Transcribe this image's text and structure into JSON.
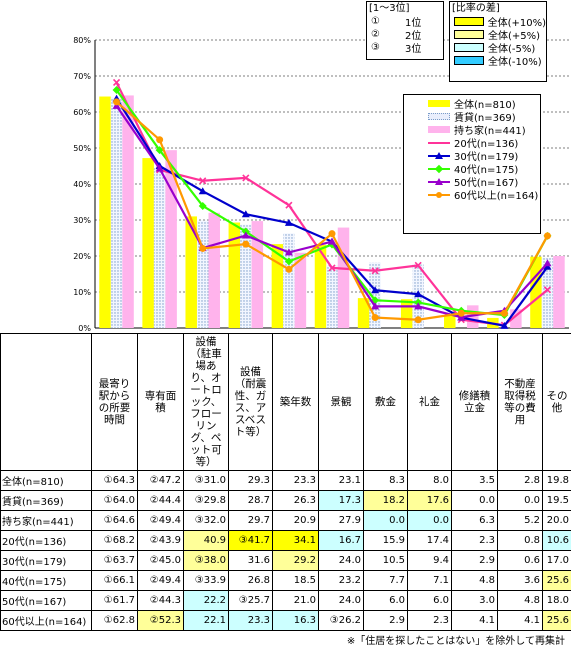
{
  "chart_data": {
    "type": "bar",
    "ylim": [
      0,
      80
    ],
    "yticks": [
      "0%",
      "10%",
      "20%",
      "30%",
      "40%",
      "50%",
      "60%",
      "70%",
      "80%"
    ],
    "categories": [
      "最寄り駅からの所要時間",
      "専有面積",
      "設備（駐車場あり、オートロック、フローリング、ペット可等）",
      "設備（耐震性、ガス、アスベスト等）",
      "築年数",
      "景観",
      "敷金",
      "礼金",
      "修繕積立金",
      "不動産取得税等の費用",
      "その他"
    ],
    "bar_series": [
      {
        "name": "全体(n=810)",
        "color": "#ffff00",
        "values": [
          64.3,
          47.2,
          31.0,
          29.3,
          23.3,
          23.1,
          8.3,
          8.0,
          3.5,
          2.8,
          19.8
        ]
      },
      {
        "name": "賃貸(n=369)",
        "color": "#ccddee",
        "values": [
          64.0,
          44.4,
          29.8,
          28.7,
          26.3,
          17.3,
          18.2,
          17.6,
          0.0,
          0.0,
          19.5
        ]
      },
      {
        "name": "持ち家(n=441)",
        "color": "#ffb3ec",
        "values": [
          64.6,
          49.4,
          32.0,
          29.7,
          20.9,
          27.9,
          0.0,
          0.0,
          6.3,
          5.2,
          20.0
        ]
      }
    ],
    "line_series": [
      {
        "name": "20代(n=136)",
        "color": "#ff3399",
        "marker": "x",
        "values": [
          68.2,
          43.9,
          40.9,
          41.7,
          34.1,
          16.7,
          15.9,
          17.4,
          2.3,
          0.8,
          10.6
        ]
      },
      {
        "name": "30代(n=179)",
        "color": "#0000cc",
        "marker": "triangle",
        "values": [
          63.7,
          45.0,
          38.0,
          31.6,
          29.2,
          24.0,
          10.5,
          9.4,
          2.9,
          0.6,
          17.0
        ]
      },
      {
        "name": "40代(n=175)",
        "color": "#33ff00",
        "marker": "diamond",
        "values": [
          66.1,
          49.4,
          33.9,
          26.8,
          18.5,
          23.2,
          7.7,
          7.1,
          4.8,
          3.6,
          25.6
        ]
      },
      {
        "name": "50代(n=167)",
        "color": "#9900cc",
        "marker": "triangle",
        "values": [
          61.7,
          44.3,
          22.2,
          25.7,
          21.0,
          24.0,
          6.0,
          6.0,
          3.0,
          4.8,
          18.0
        ]
      },
      {
        "name": "60代以上(n=164)",
        "color": "#ff9900",
        "marker": "circle",
        "values": [
          62.8,
          52.3,
          22.1,
          23.3,
          16.3,
          26.2,
          2.9,
          2.3,
          4.1,
          4.1,
          25.6
        ]
      }
    ]
  },
  "rank_legend": {
    "title": "[1〜3位]",
    "items": [
      {
        "mark": "①",
        "label": "1位"
      },
      {
        "mark": "②",
        "label": "2位"
      },
      {
        "mark": "③",
        "label": "3位"
      }
    ]
  },
  "diff_legend": {
    "title": "[比率の差]",
    "items": [
      {
        "label": "全体(+10%)",
        "color": "#ffff00"
      },
      {
        "label": "全体(+5%)",
        "color": "#ffff99"
      },
      {
        "label": "全体(-5%)",
        "color": "#ccffff"
      },
      {
        "label": "全体(-10%)",
        "color": "#33ccff"
      }
    ]
  },
  "table": {
    "headers": [
      "最寄り駅からの所要時間",
      "専有面積",
      "設備（駐車場あり、オートロック、フローリング、ペット可等）",
      "設備（耐震性、ガス、アスベスト等）",
      "築年数",
      "景観",
      "敷金",
      "礼金",
      "修繕積立金",
      "不動産取得税等の費用",
      "その他"
    ],
    "rows": [
      {
        "label": "全体(n=810)",
        "cells": [
          "①64.3",
          "②47.2",
          "③31.0",
          "29.3",
          "23.3",
          "23.1",
          "8.3",
          "8.0",
          "3.5",
          "2.8",
          "19.8"
        ],
        "shade": [
          "",
          "",
          "",
          "",
          "",
          "",
          "",
          "",
          "",
          "",
          ""
        ]
      },
      {
        "label": "賃貸(n=369)",
        "cells": [
          "①64.0",
          "②44.4",
          "③29.8",
          "28.7",
          "26.3",
          "17.3",
          "18.2",
          "17.6",
          "0.0",
          "0.0",
          "19.5"
        ],
        "shade": [
          "",
          "",
          "",
          "",
          "",
          "b5",
          "y5",
          "y5",
          "",
          "",
          ""
        ]
      },
      {
        "label": "持ち家(n=441)",
        "cells": [
          "①64.6",
          "②49.4",
          "③32.0",
          "29.7",
          "20.9",
          "27.9",
          "0.0",
          "0.0",
          "6.3",
          "5.2",
          "20.0"
        ],
        "shade": [
          "",
          "",
          "",
          "",
          "",
          "",
          "b5",
          "b5",
          "",
          "",
          ""
        ]
      },
      {
        "label": "20代(n=136)",
        "cells": [
          "①68.2",
          "②43.9",
          "40.9",
          "③41.7",
          "34.1",
          "16.7",
          "15.9",
          "17.4",
          "2.3",
          "0.8",
          "10.6"
        ],
        "shade": [
          "",
          "",
          "y5",
          "y10",
          "y10",
          "b5",
          "",
          "",
          "",
          "",
          "b5"
        ]
      },
      {
        "label": "30代(n=179)",
        "cells": [
          "①63.7",
          "②45.0",
          "③38.0",
          "31.6",
          "29.2",
          "24.0",
          "10.5",
          "9.4",
          "2.9",
          "0.6",
          "17.0"
        ],
        "shade": [
          "",
          "",
          "y5",
          "",
          "y5",
          "",
          "",
          "",
          "",
          "",
          ""
        ]
      },
      {
        "label": "40代(n=175)",
        "cells": [
          "①66.1",
          "②49.4",
          "③33.9",
          "26.8",
          "18.5",
          "23.2",
          "7.7",
          "7.1",
          "4.8",
          "3.6",
          "25.6"
        ],
        "shade": [
          "",
          "",
          "",
          "",
          "",
          "",
          "",
          "",
          "",
          "",
          "y5"
        ]
      },
      {
        "label": "50代(n=167)",
        "cells": [
          "①61.7",
          "②44.3",
          "22.2",
          "③25.7",
          "21.0",
          "24.0",
          "6.0",
          "6.0",
          "3.0",
          "4.8",
          "18.0"
        ],
        "shade": [
          "",
          "",
          "b5",
          "",
          "",
          "",
          "",
          "",
          "",
          "",
          ""
        ]
      },
      {
        "label": "60代以上(n=164)",
        "cells": [
          "①62.8",
          "②52.3",
          "22.1",
          "23.3",
          "16.3",
          "③26.2",
          "2.9",
          "2.3",
          "4.1",
          "4.1",
          "25.6"
        ],
        "shade": [
          "",
          "y5",
          "b5",
          "b5",
          "b5",
          "",
          "",
          "",
          "",
          "",
          "y5"
        ]
      }
    ]
  },
  "note": "※「住居を探したことはない」を除外して再集計"
}
